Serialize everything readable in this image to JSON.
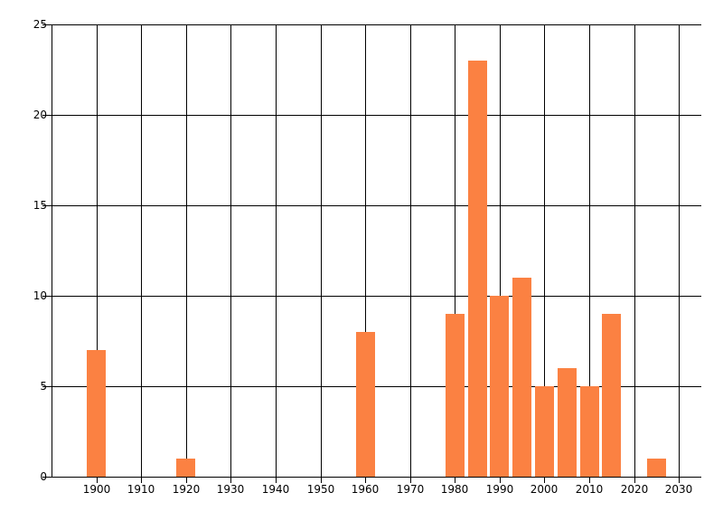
{
  "chart_data": {
    "type": "bar",
    "title": "",
    "xlabel": "",
    "ylabel": "",
    "legend": "none",
    "grid": true,
    "bar_color": "#fb8142",
    "grid_color": "#000000",
    "label_color": "#000000",
    "background_color": "#ffffff",
    "xlim": [
      1890,
      2035
    ],
    "ylim": [
      0,
      25
    ],
    "x_ticks": [
      1900,
      1910,
      1920,
      1930,
      1940,
      1950,
      1960,
      1970,
      1980,
      1990,
      2000,
      2010,
      2020,
      2030
    ],
    "y_ticks": [
      0,
      5,
      10,
      15,
      20,
      25
    ],
    "bin_width_years": 5,
    "bars": [
      {
        "x": 1900,
        "value": 7
      },
      {
        "x": 1920,
        "value": 1
      },
      {
        "x": 1960,
        "value": 8
      },
      {
        "x": 1980,
        "value": 9
      },
      {
        "x": 1985,
        "value": 23
      },
      {
        "x": 1990,
        "value": 10
      },
      {
        "x": 1995,
        "value": 11
      },
      {
        "x": 2000,
        "value": 5
      },
      {
        "x": 2005,
        "value": 6
      },
      {
        "x": 2010,
        "value": 5
      },
      {
        "x": 2015,
        "value": 9
      },
      {
        "x": 2025,
        "value": 1
      }
    ]
  }
}
